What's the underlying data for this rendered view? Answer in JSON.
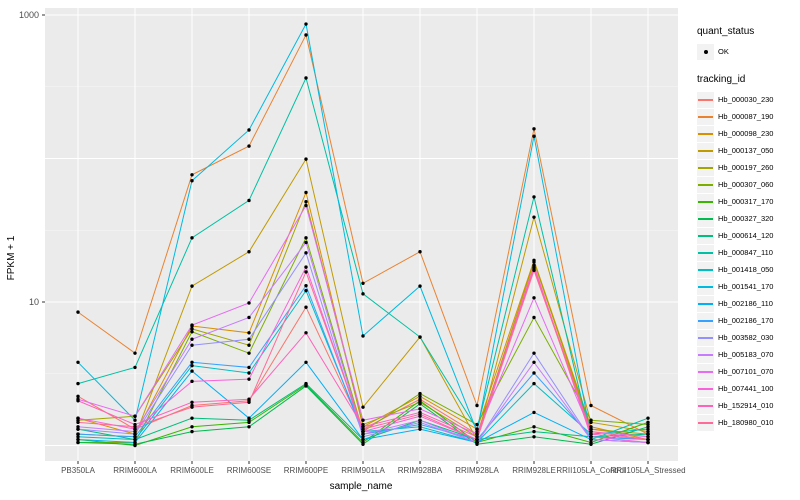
{
  "figure": {
    "y_axis": {
      "label": "FPKM + 1",
      "tick_labels": [
        "1000",
        "10"
      ],
      "tick_values": [
        1000,
        10
      ]
    },
    "x_axis": {
      "label": "sample_name"
    },
    "legend": {
      "quant_status": {
        "title": "quant_status",
        "items": [
          {
            "label": "OK",
            "marker": "point-icon",
            "color": "#000000"
          }
        ]
      },
      "tracking_id": {
        "title": "tracking_id"
      }
    },
    "colors": {
      "panel_bg": "#ebebeb",
      "grid": "#ffffff",
      "axis_text": "#4d4d4d",
      "point": "#000000",
      "legend_key_bg": "#f2f2f2"
    }
  },
  "chart_data": {
    "type": "line",
    "title": "",
    "xlabel": "sample_name",
    "ylabel": "FPKM + 1",
    "yscale": "log10",
    "ylim": [
      0.78,
      1120
    ],
    "y_ticks": [
      10,
      1000
    ],
    "grid": "on",
    "legend_position": "right",
    "point_marker": "black-dot",
    "categories": [
      "PB350LA",
      "RRIM600LA",
      "RRIM600LE",
      "RRIM600SE",
      "RRIM600PE",
      "RRIM901LA",
      "RRIM928BA",
      "RRIM928LA",
      "RRIM928LE",
      "RRII105LA_Control",
      "RRII105LA_Stressed"
    ],
    "series": [
      {
        "name": "Hb_000030_230",
        "color": "#F8766D",
        "values": [
          2.2,
          1.3,
          1.9,
          2.05,
          9.2,
          1.3,
          2.1,
          1.2,
          17.0,
          1.3,
          1.15
        ]
      },
      {
        "name": "Hb_000087_190",
        "color": "#EA8331",
        "values": [
          8.5,
          4.4,
          77,
          122,
          726,
          13.5,
          22.4,
          1.9,
          161,
          1.9,
          1.2
        ]
      },
      {
        "name": "Hb_000098_230",
        "color": "#D89000",
        "values": [
          1.55,
          1.2,
          6.8,
          6.1,
          58,
          1.35,
          2.2,
          1.3,
          19.5,
          1.35,
          1.1
        ]
      },
      {
        "name": "Hb_000137_050",
        "color": "#C09B00",
        "values": [
          1.2,
          1.15,
          12.9,
          22.4,
          99,
          1.85,
          5.7,
          1.1,
          39,
          1.45,
          1.25
        ]
      },
      {
        "name": "Hb_000197_260",
        "color": "#A3A500",
        "values": [
          1.5,
          1.6,
          6.5,
          5.0,
          50,
          1.4,
          2.0,
          1.15,
          19,
          1.3,
          1.2
        ]
      },
      {
        "name": "Hb_000307_060",
        "color": "#7CAE00",
        "values": [
          1.05,
          1.05,
          6.2,
          4.4,
          28,
          1.25,
          2.3,
          1.4,
          7.8,
          1.5,
          1.4
        ]
      },
      {
        "name": "Hb_000317_170",
        "color": "#39B600",
        "values": [
          1.1,
          1.0,
          1.35,
          1.45,
          2.65,
          1.05,
          2.05,
          1.05,
          1.35,
          1.05,
          1.45
        ]
      },
      {
        "name": "Hb_000327_320",
        "color": "#00BB4E",
        "values": [
          1.05,
          1.02,
          1.25,
          1.35,
          2.6,
          1.02,
          1.95,
          1.02,
          1.15,
          1.02,
          1.35
        ]
      },
      {
        "name": "Hb_000614_120",
        "color": "#00BF7D",
        "values": [
          1.3,
          1.1,
          1.55,
          1.5,
          2.7,
          1.1,
          1.5,
          1.1,
          1.25,
          1.15,
          1.2
        ]
      },
      {
        "name": "Hb_000847_110",
        "color": "#00C1A3",
        "values": [
          2.7,
          3.5,
          28,
          51,
          364,
          11.4,
          5.7,
          1.3,
          54,
          1.1,
          1.55
        ]
      },
      {
        "name": "Hb_001418_050",
        "color": "#00BFC4",
        "values": [
          1.15,
          1.1,
          3.6,
          3.2,
          12,
          1.25,
          1.35,
          1.05,
          2.7,
          1.2,
          1.3
        ]
      },
      {
        "name": "Hb_001541_170",
        "color": "#00BAE0",
        "values": [
          3.8,
          1.5,
          70,
          158,
          865,
          5.8,
          12.9,
          1.25,
          143,
          1.15,
          1.1
        ]
      },
      {
        "name": "Hb_002186_110",
        "color": "#00B0F6",
        "values": [
          1.1,
          1.05,
          3.3,
          1.55,
          3.8,
          1.1,
          1.3,
          1.05,
          1.7,
          1.1,
          1.05
        ]
      },
      {
        "name": "Hb_002186_170",
        "color": "#35A2FF",
        "values": [
          1.2,
          1.15,
          3.8,
          3.5,
          13,
          1.2,
          1.4,
          1.1,
          3.2,
          1.15,
          1.1
        ]
      },
      {
        "name": "Hb_003582_030",
        "color": "#9590FF",
        "values": [
          1.3,
          1.2,
          5.0,
          5.5,
          22,
          1.15,
          1.45,
          1.05,
          4.4,
          1.1,
          1.05
        ]
      },
      {
        "name": "Hb_005183_070",
        "color": "#C77CFF",
        "values": [
          1.35,
          1.25,
          5.5,
          7.8,
          26,
          1.2,
          1.5,
          1.05,
          3.8,
          1.1,
          1.05
        ]
      },
      {
        "name": "Hb_007101_070",
        "color": "#E76BF3",
        "values": [
          2.1,
          1.6,
          6.9,
          9.85,
          47,
          1.5,
          1.8,
          1.2,
          10.7,
          1.25,
          1.15
        ]
      },
      {
        "name": "Hb_007441_100",
        "color": "#FA62DB",
        "values": [
          1.55,
          1.3,
          2.8,
          2.9,
          17.5,
          1.25,
          1.6,
          1.1,
          18,
          1.15,
          1.05
        ]
      },
      {
        "name": "Hb_152914_010",
        "color": "#FF62BC",
        "values": [
          2.05,
          1.4,
          2.0,
          2.1,
          6.1,
          1.35,
          1.7,
          1.15,
          17.5,
          1.2,
          1.1
        ]
      },
      {
        "name": "Hb_180980_010",
        "color": "#FF6A98",
        "values": [
          1.45,
          1.35,
          1.85,
          2.0,
          16.2,
          1.3,
          1.65,
          1.1,
          16.6,
          1.25,
          1.1
        ]
      }
    ]
  }
}
